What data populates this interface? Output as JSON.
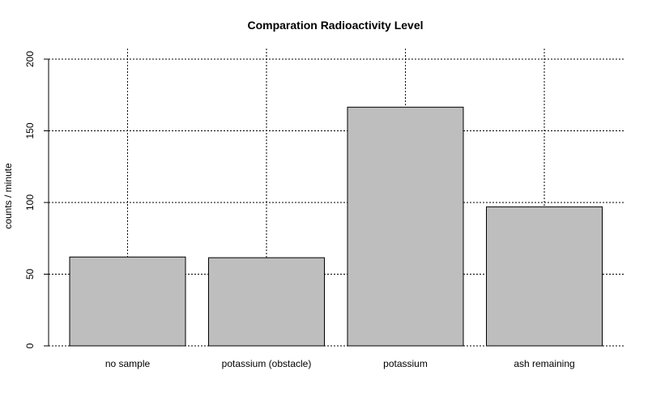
{
  "chart_data": {
    "type": "bar",
    "title": "Comparation Radioactivity Level",
    "xlabel": "",
    "ylabel": "counts / minute",
    "categories": [
      "no sample",
      "potassium (obstacle)",
      "potassium",
      "ash remaining"
    ],
    "values": [
      62,
      61.5,
      166.5,
      97
    ],
    "ylim": [
      0,
      200
    ],
    "yticks": [
      0,
      50,
      100,
      150,
      200
    ],
    "grid": true,
    "bar_color": "#bebebe",
    "bar_stroke": "#000000",
    "grid_color": "#000000"
  }
}
